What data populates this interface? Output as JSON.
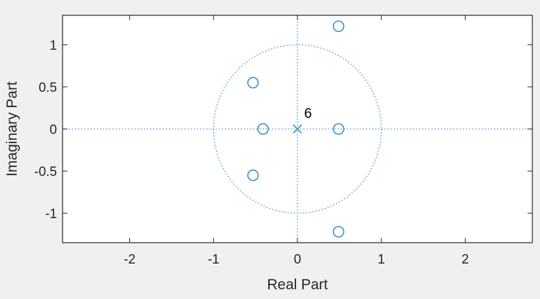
{
  "chart_data": {
    "type": "scatter",
    "title": "",
    "xlabel": "Real Part",
    "ylabel": "Imaginary Part",
    "xlim": [
      -2.8,
      2.8
    ],
    "ylim": [
      -1.35,
      1.35
    ],
    "xticks": [
      -2,
      -1,
      0,
      1,
      2
    ],
    "yticks": [
      -1,
      -0.5,
      0,
      0.5,
      1
    ],
    "xtick_labels": [
      "-2",
      "-1",
      "0",
      "1",
      "2"
    ],
    "ytick_labels": [
      "-1",
      "-0.5",
      "0",
      "0.5",
      "1"
    ],
    "grid": false,
    "legend": "none",
    "unit_circle": true,
    "zeros": [
      {
        "x": 0.49,
        "y": 1.22
      },
      {
        "x": -0.53,
        "y": 0.55
      },
      {
        "x": -0.41,
        "y": 0
      },
      {
        "x": 0.49,
        "y": 0
      },
      {
        "x": -0.53,
        "y": -0.55
      },
      {
        "x": 0.49,
        "y": -1.22
      }
    ],
    "poles": [
      {
        "x": 0,
        "y": 0
      }
    ],
    "annotations": [
      {
        "text": "6",
        "x": 0.08,
        "y": 0.1
      }
    ],
    "colors": {
      "marker": "#3a8fc8",
      "guide": "#3a8fc8",
      "axes": "#262626",
      "plot_bg": "#ffffff",
      "figure_bg": "#f0f0f0"
    }
  }
}
